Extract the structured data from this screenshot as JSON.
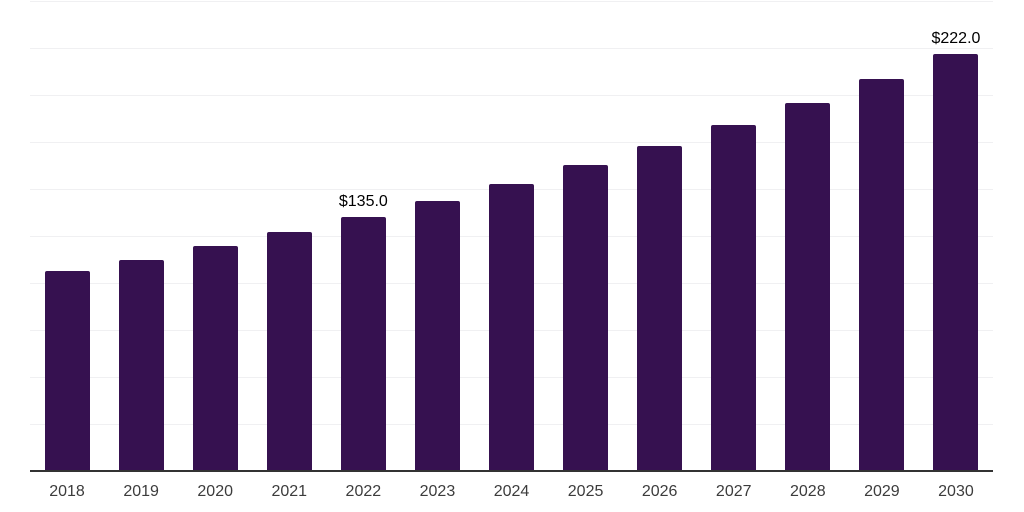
{
  "chart_data": {
    "type": "bar",
    "title": "",
    "xlabel": "",
    "ylabel": "",
    "categories": [
      "2018",
      "2019",
      "2020",
      "2021",
      "2022",
      "2023",
      "2024",
      "2025",
      "2026",
      "2027",
      "2028",
      "2029",
      "2030"
    ],
    "values": [
      106.4,
      112.5,
      119.6,
      126.9,
      135.0,
      143.7,
      152.9,
      162.7,
      173.1,
      184.2,
      196.0,
      208.6,
      222.0
    ],
    "bar_labels": [
      "",
      "",
      "",
      "",
      "$135.0",
      "",
      "",
      "",
      "",
      "",
      "",
      "",
      "$222.0"
    ],
    "ylim": [
      0,
      250
    ],
    "grid_step": 25,
    "grid": "horizontal",
    "legend": "none",
    "y_tick_labels_visible": false,
    "colors": {
      "bar": "#361150",
      "gridline": "#f0f0f2",
      "axis_line": "#333333",
      "x_tick_label": "#3c3c3c",
      "data_label": "#000000",
      "background": "#ffffff"
    }
  }
}
